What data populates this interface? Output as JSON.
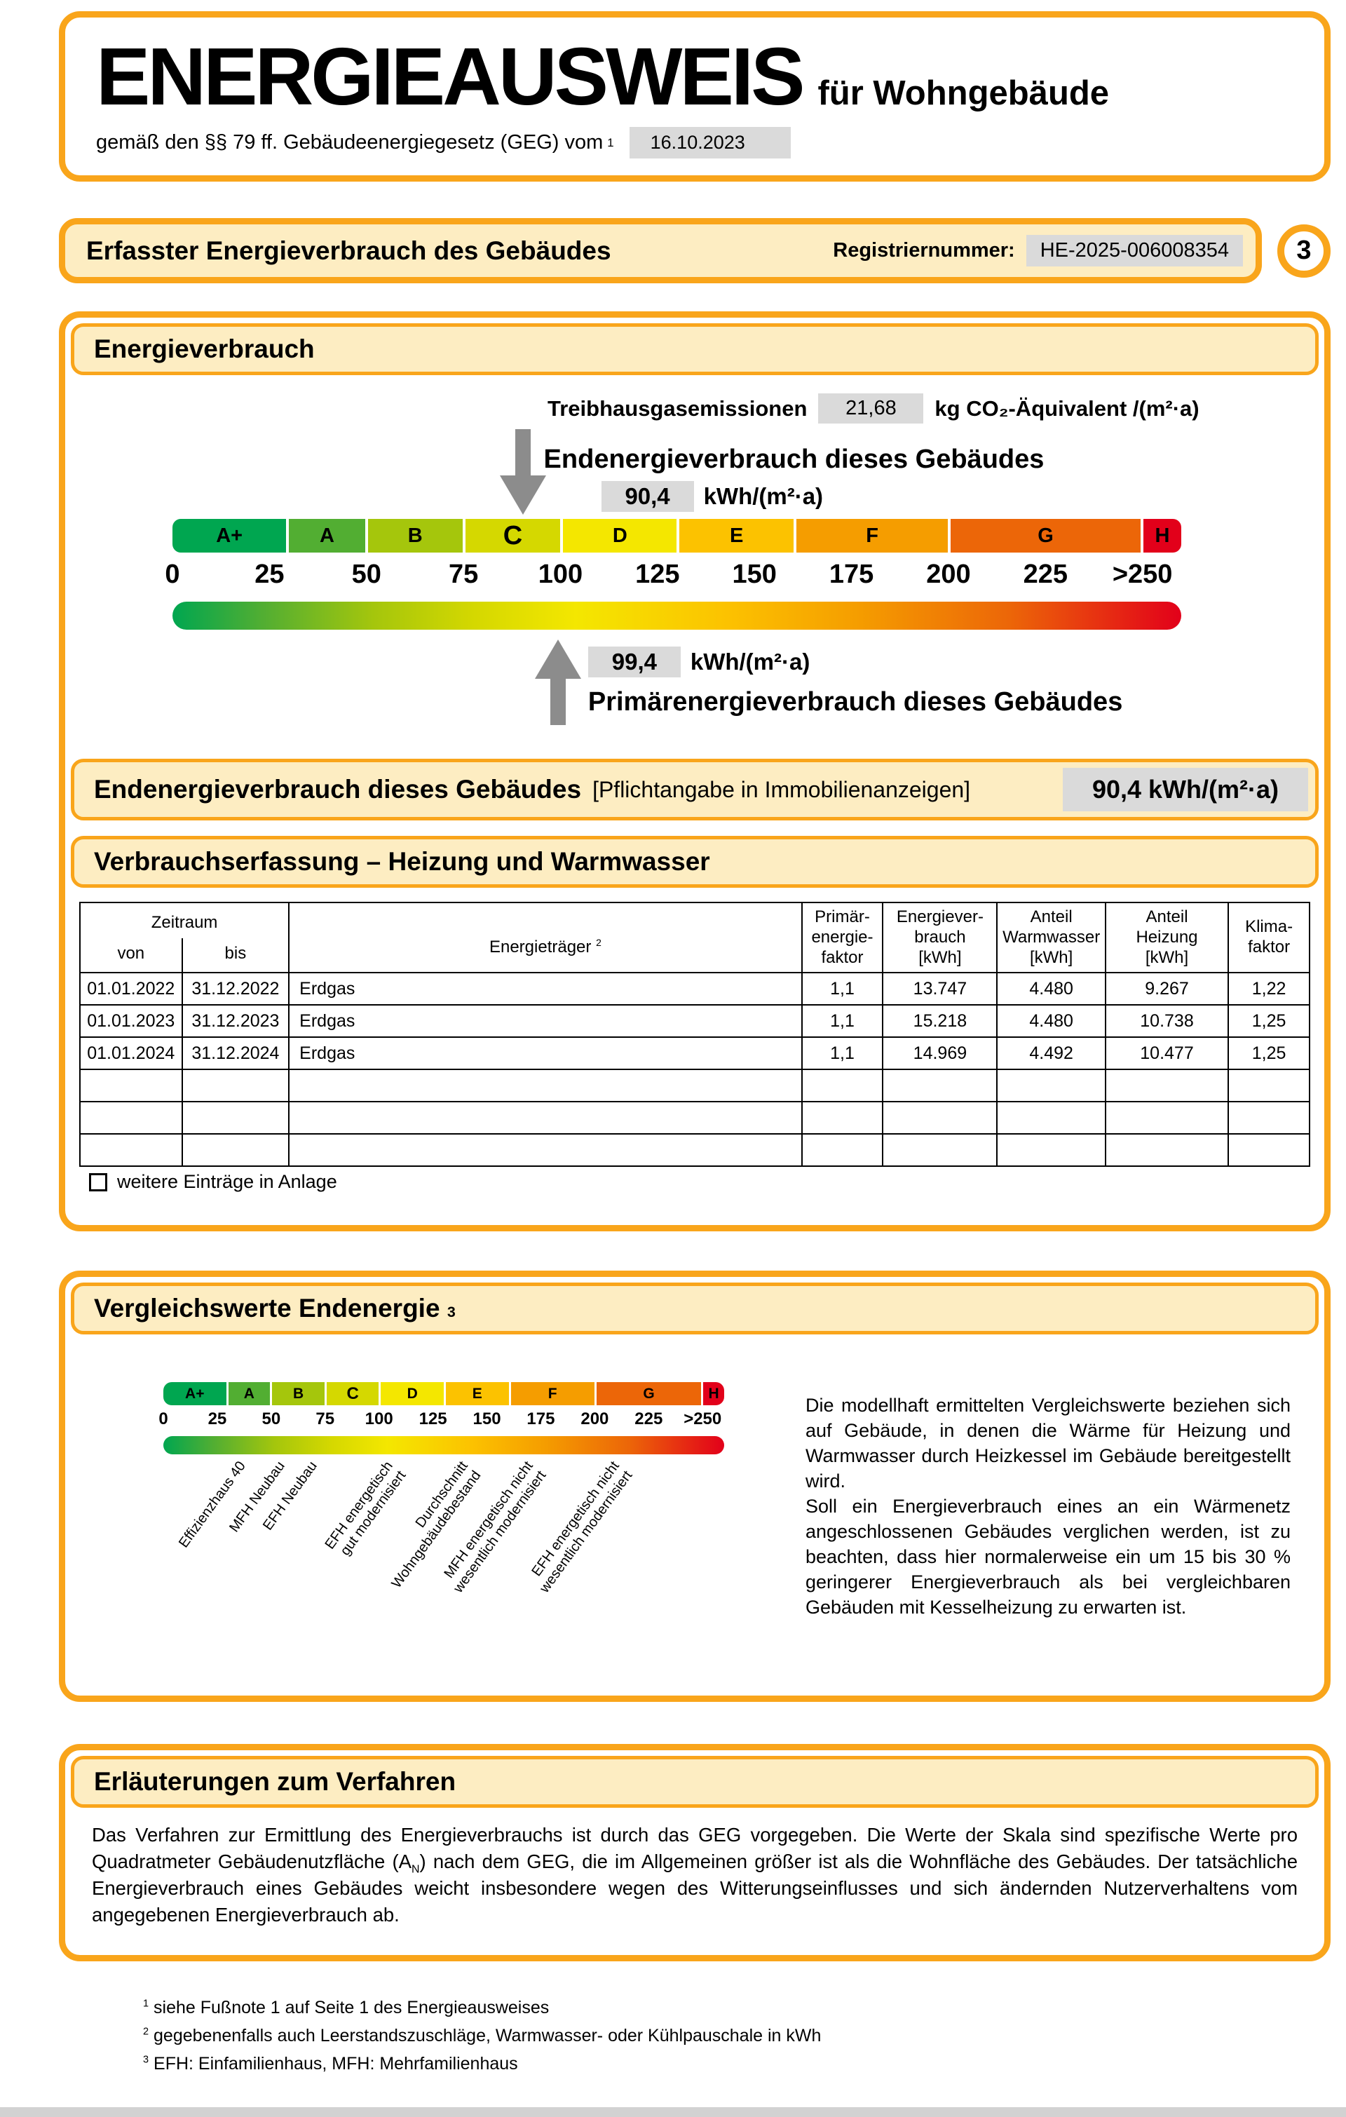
{
  "header": {
    "title": "ENERGIEAUSWEIS",
    "subtitle": "für Wohngebäude",
    "law_text": "gemäß den §§ 79 ff. Gebäudeenergiegesetz (GEG) vom",
    "law_footnote_ref": "1",
    "date": "16.10.2023"
  },
  "banner": {
    "title": "Erfasster Energieverbrauch des Gebäudes",
    "registry_label": "Registriernummer:",
    "registry_value": "HE-2025-006008354",
    "page_number": "3"
  },
  "energy_section": {
    "title": "Energieverbrauch",
    "ghg_label": "Treibhausgasemissionen",
    "ghg_value": "21,68",
    "ghg_unit": "kg CO₂-Äquivalent /(m²·a)",
    "end_energy_label": "Endenergieverbrauch dieses Gebäudes",
    "end_energy_value": "90,4",
    "end_energy_unit": "kWh/(m²·a)",
    "primary_energy_label": "Primärenergieverbrauch dieses Gebäudes",
    "primary_energy_value": "99,4",
    "primary_energy_unit": "kWh/(m²·a)"
  },
  "end_energy_banner": {
    "title": "Endenergieverbrauch dieses Gebäudes",
    "note": "[Pflichtangabe in Immobilienanzeigen]",
    "value": "90,4 kWh/(m²·a)"
  },
  "consumption_section": {
    "title": "Verbrauchserfassung – Heizung und Warmwasser",
    "checkbox_label": "weitere Einträge in Anlage",
    "table": {
      "headers": {
        "zeitraum": "Zeitraum",
        "von": "von",
        "bis": "bis",
        "energietraeger": "Energieträger",
        "energietraeger_sup": "2",
        "primaerfaktor": "Primär-\nenergie-\nfaktor",
        "verbrauch": "Energiever-\nbrauch\n[kWh]",
        "warmwasser": "Anteil\nWarmwasser\n[kWh]",
        "heizung": "Anteil\nHeizung\n[kWh]",
        "klimafaktor": "Klima-\nfaktor"
      },
      "rows": [
        [
          "01.01.2022",
          "31.12.2022",
          "Erdgas",
          "1,1",
          "13.747",
          "4.480",
          "9.267",
          "1,22"
        ],
        [
          "01.01.2023",
          "31.12.2023",
          "Erdgas",
          "1,1",
          "15.218",
          "4.480",
          "10.738",
          "1,25"
        ],
        [
          "01.01.2024",
          "31.12.2024",
          "Erdgas",
          "1,1",
          "14.969",
          "4.492",
          "10.477",
          "1,25"
        ]
      ],
      "empty_rows": 3
    }
  },
  "comparison_section": {
    "title": "Vergleichswerte Endenergie",
    "title_sup": "3",
    "paragraphs": [
      "Die modellhaft ermittelten Vergleichswerte beziehen sich auf Gebäude, in denen die Wärme für Heizung und Warmwasser durch Heizkessel im Gebäude bereitgestellt wird.",
      "Soll ein Energieverbrauch eines an ein Wärmenetz angeschlossenen Gebäudes verglichen werden, ist zu beachten, dass hier normalerweise ein um 15 bis 30 % geringerer Energieverbrauch als bei vergleichbaren Gebäuden mit Kesselheizung zu erwarten ist."
    ]
  },
  "explanation_section": {
    "title": "Erläuterungen zum Verfahren",
    "text_before_sub": "Das Verfahren zur Ermittlung des Energieverbrauchs ist durch das GEG vorgegeben. Die Werte der Skala sind spezifische Werte pro Quadratmeter Gebäudenutzfläche (A",
    "sub": "N",
    "text_after_sub": ") nach dem GEG, die im Allgemeinen größer ist als die Wohnfläche des Gebäudes. Der tatsächliche Energieverbrauch eines Gebäudes weicht insbesondere wegen des Witterungseinflusses und sich ändernden Nutzerverhaltens vom angegebenen Energieverbrauch ab."
  },
  "footnotes": [
    {
      "sup": "1",
      "text": "siehe Fußnote 1 auf Seite 1 des Energieausweises"
    },
    {
      "sup": "2",
      "text": "gegebenenfalls auch Leerstandszuschläge, Warmwasser- oder Kühlpauschale in kWh"
    },
    {
      "sup": "3",
      "text": "EFH: Einfamilienhaus, MFH: Mehrfamilienhaus"
    }
  ],
  "chart_data": {
    "type": "energy-rating-scale",
    "axis_max": 260,
    "tick_step": 25,
    "classes": [
      {
        "label": "A+",
        "from": 0,
        "to": 30,
        "color": "#00a650"
      },
      {
        "label": "A",
        "from": 30,
        "to": 50,
        "color": "#52ae32"
      },
      {
        "label": "B",
        "from": 50,
        "to": 75,
        "color": "#a5c60c"
      },
      {
        "label": "C",
        "from": 75,
        "to": 100,
        "color": "#d5d800",
        "current": true
      },
      {
        "label": "D",
        "from": 100,
        "to": 130,
        "color": "#f4e700"
      },
      {
        "label": "E",
        "from": 130,
        "to": 160,
        "color": "#fcc200"
      },
      {
        "label": "F",
        "from": 160,
        "to": 200,
        "color": "#f59d00"
      },
      {
        "label": "G",
        "from": 200,
        "to": 250,
        "color": "#ec6608"
      },
      {
        "label": "H",
        "from": 250,
        "to": 260,
        "color": "#e2001a"
      }
    ],
    "ticks": [
      "0",
      "25",
      "50",
      "75",
      "100",
      "125",
      "150",
      "175",
      "200",
      "225",
      ">250"
    ],
    "markers": [
      {
        "id": "endenergie",
        "label": "Endenergieverbrauch dieses Gebäudes",
        "value": 90.4,
        "unit": "kWh/(m²·a)"
      },
      {
        "id": "primaerenergie",
        "label": "Primärenergieverbrauch dieses Gebäudes",
        "value": 99.4,
        "unit": "kWh/(m²·a)"
      }
    ],
    "treibhausgasemissionen": {
      "value": 21.68,
      "unit": "kg CO₂-Äquivalent /(m²·a)"
    },
    "references": [
      {
        "label": "Effizienzhaus 40",
        "value": 30
      },
      {
        "label": "MFH Neubau",
        "value": 48
      },
      {
        "label": "EFH Neubau",
        "value": 63
      },
      {
        "label": "EFH energetisch\ngut modernisiert",
        "value": 98
      },
      {
        "label": "Durchschnitt\nWohngebäudebestand",
        "value": 133
      },
      {
        "label": "MFH energetisch nicht\nwesentlich modernisiert",
        "value": 163
      },
      {
        "label": "EFH energetisch nicht\nwesentlich modernisiert",
        "value": 203
      }
    ]
  }
}
